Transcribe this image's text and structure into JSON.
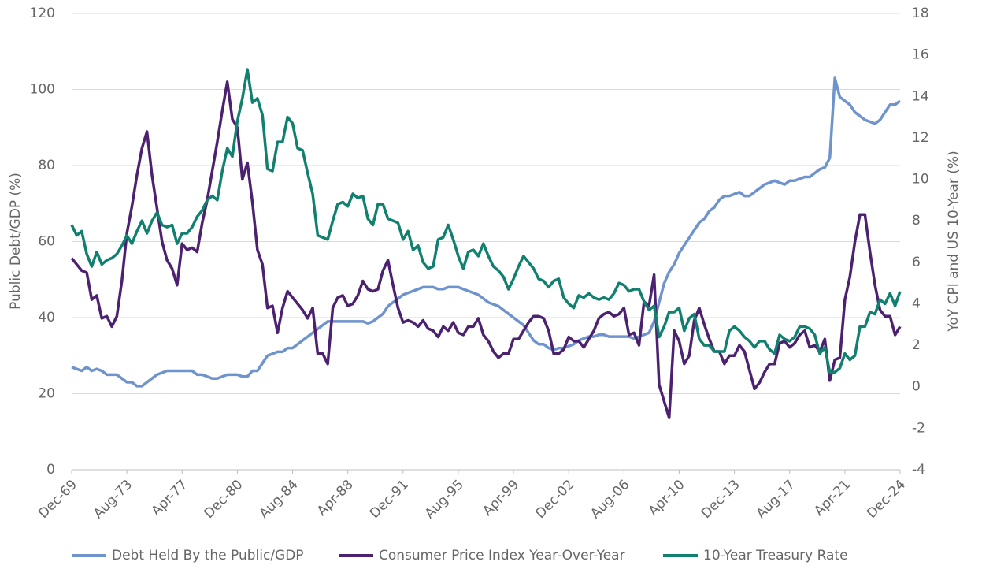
{
  "chart_data": {
    "type": "line",
    "y_label": "Public Debt/GDP (%)",
    "y2_label": "YoY CPI and US 10-Year (%)",
    "categories": [
      "Dec-69",
      null,
      null,
      null,
      null,
      null,
      null,
      null,
      null,
      null,
      null,
      "Aug-73",
      null,
      null,
      null,
      null,
      null,
      null,
      null,
      null,
      null,
      null,
      "Apr-77",
      null,
      null,
      null,
      null,
      null,
      null,
      null,
      null,
      null,
      null,
      "Dec-80",
      null,
      null,
      null,
      null,
      null,
      null,
      null,
      null,
      null,
      null,
      "Aug-84",
      null,
      null,
      null,
      null,
      null,
      null,
      null,
      null,
      null,
      null,
      "Apr-88",
      null,
      null,
      null,
      null,
      null,
      null,
      null,
      null,
      null,
      null,
      "Dec-91",
      null,
      null,
      null,
      null,
      null,
      null,
      null,
      null,
      null,
      null,
      "Aug-95",
      null,
      null,
      null,
      null,
      null,
      null,
      null,
      null,
      null,
      null,
      "Apr-99",
      null,
      null,
      null,
      null,
      null,
      null,
      null,
      null,
      null,
      null,
      "Dec-02",
      null,
      null,
      null,
      null,
      null,
      null,
      null,
      null,
      null,
      null,
      "Aug-06",
      null,
      null,
      null,
      null,
      null,
      null,
      null,
      null,
      null,
      null,
      "Apr-10",
      null,
      null,
      null,
      null,
      null,
      null,
      null,
      null,
      null,
      null,
      "Dec-13",
      null,
      null,
      null,
      null,
      null,
      null,
      null,
      null,
      null,
      null,
      "Aug-17",
      null,
      null,
      null,
      null,
      null,
      null,
      null,
      null,
      null,
      null,
      "Apr-21",
      null,
      null,
      null,
      null,
      null,
      null,
      null,
      null,
      null,
      null,
      "Dec-24"
    ],
    "ylim": [
      0,
      120
    ],
    "yticks": [
      0,
      20,
      40,
      60,
      80,
      100,
      120
    ],
    "y2lim": [
      -4,
      18
    ],
    "y2ticks": [
      -4,
      -2,
      0,
      2,
      4,
      6,
      8,
      10,
      12,
      14,
      16,
      18
    ],
    "grid": true,
    "legend": "bottom",
    "series": [
      {
        "name": "Debt Held By the Public/GDP",
        "color": "#6f93cd",
        "values": [
          27,
          26.5,
          26,
          27,
          26,
          26.5,
          26,
          25,
          25,
          25,
          24,
          23,
          23,
          22,
          22,
          23,
          24,
          25,
          25.5,
          26,
          26,
          26,
          26,
          26,
          26,
          25,
          25,
          24.5,
          24,
          24,
          24.5,
          25,
          25,
          25,
          24.5,
          24.5,
          26,
          26,
          28,
          30,
          30.5,
          31,
          31,
          32,
          32,
          33,
          34,
          35,
          36,
          37,
          38,
          39,
          39,
          39,
          39,
          39,
          39,
          39,
          39,
          38.5,
          39,
          40,
          41,
          43,
          44,
          45,
          46,
          46.5,
          47,
          47.5,
          48,
          48,
          48,
          47.5,
          47.5,
          48,
          48,
          48,
          47.5,
          47,
          46.5,
          46,
          45,
          44,
          43.5,
          43,
          42,
          41,
          40,
          39,
          38,
          36,
          34,
          33,
          33,
          32,
          31.5,
          32,
          32,
          32.5,
          33,
          34,
          34.5,
          35,
          35,
          35.5,
          35.5,
          35,
          35,
          35,
          35,
          35,
          34.5,
          35,
          35.5,
          36,
          39,
          44,
          49,
          52,
          54,
          57,
          59,
          61,
          63,
          65,
          66,
          68,
          69,
          71,
          72,
          72,
          72.5,
          73,
          72,
          72,
          73,
          74,
          75,
          75.5,
          76,
          75.5,
          75,
          76,
          76,
          76.5,
          77,
          77,
          78,
          79,
          79.5,
          82,
          103,
          98,
          97,
          96,
          94,
          93,
          92,
          91.5,
          91,
          92,
          94,
          96,
          96,
          97
        ]
      },
      {
        "name": "Consumer Price Index Year-Over-Year",
        "color": "#4b2170",
        "axis": "y2",
        "values": [
          6.2,
          5.9,
          5.6,
          5.5,
          4.2,
          4.4,
          3.3,
          3.4,
          2.9,
          3.4,
          5.1,
          7.4,
          8.7,
          10.2,
          11.5,
          12.3,
          10.2,
          8.6,
          7.0,
          6.1,
          5.7,
          4.9,
          6.9,
          6.6,
          6.7,
          6.5,
          7.9,
          9.0,
          10.4,
          11.8,
          13.3,
          14.7,
          12.9,
          12.5,
          10.0,
          10.8,
          8.9,
          6.6,
          5.9,
          3.8,
          3.9,
          2.6,
          3.8,
          4.6,
          4.3,
          4.0,
          3.7,
          3.3,
          3.8,
          1.6,
          1.6,
          1.1,
          3.8,
          4.3,
          4.4,
          3.9,
          4.0,
          4.4,
          5.1,
          4.7,
          4.6,
          4.7,
          5.6,
          6.1,
          4.9,
          3.8,
          3.1,
          3.2,
          3.1,
          2.9,
          3.2,
          2.8,
          2.7,
          2.4,
          2.9,
          2.7,
          3.1,
          2.6,
          2.5,
          2.9,
          2.9,
          3.3,
          2.5,
          2.2,
          1.7,
          1.4,
          1.6,
          1.6,
          2.3,
          2.3,
          2.7,
          3.1,
          3.4,
          3.4,
          3.3,
          2.7,
          1.6,
          1.6,
          1.8,
          2.4,
          2.2,
          2.2,
          1.9,
          2.3,
          2.7,
          3.3,
          3.5,
          3.6,
          3.4,
          3.5,
          3.8,
          2.5,
          2.6,
          2.0,
          4.1,
          3.9,
          5.4,
          0.1,
          -0.7,
          -1.5,
          2.7,
          2.2,
          1.1,
          1.5,
          3.2,
          3.8,
          3.0,
          2.3,
          1.7,
          1.7,
          1.1,
          1.5,
          1.5,
          2.0,
          1.7,
          0.8,
          -0.1,
          0.2,
          0.7,
          1.1,
          1.1,
          2.1,
          2.2,
          1.9,
          2.1,
          2.5,
          2.7,
          1.9,
          2.0,
          1.7,
          2.3,
          0.3,
          1.3,
          1.4,
          4.2,
          5.3,
          7.0,
          8.3,
          8.3,
          6.5,
          4.9,
          3.7,
          3.4,
          3.4,
          2.5,
          2.9
        ]
      },
      {
        "name": "10-Year Treasury Rate",
        "color": "#11806f",
        "axis": "y2",
        "values": [
          7.8,
          7.3,
          7.5,
          6.4,
          5.8,
          6.5,
          5.9,
          6.1,
          6.2,
          6.4,
          6.8,
          7.3,
          6.9,
          7.5,
          8.0,
          7.4,
          8.0,
          8.4,
          7.8,
          7.7,
          7.8,
          6.9,
          7.4,
          7.4,
          7.7,
          8.2,
          8.5,
          9.0,
          9.2,
          9.0,
          10.4,
          11.5,
          11.1,
          12.8,
          13.9,
          15.3,
          13.7,
          13.9,
          13.1,
          10.5,
          10.4,
          11.8,
          11.8,
          13.0,
          12.7,
          11.5,
          11.4,
          10.3,
          9.3,
          7.3,
          7.2,
          7.1,
          8.0,
          8.8,
          8.9,
          8.7,
          9.3,
          9.1,
          9.2,
          8.1,
          7.8,
          8.8,
          8.8,
          8.1,
          8.0,
          7.9,
          7.1,
          7.5,
          6.6,
          6.8,
          6.0,
          5.7,
          5.8,
          7.1,
          7.2,
          7.8,
          7.1,
          6.3,
          5.7,
          6.5,
          6.6,
          6.3,
          6.9,
          6.3,
          5.8,
          5.6,
          5.3,
          4.7,
          5.2,
          5.8,
          6.3,
          6.0,
          5.7,
          5.2,
          5.1,
          4.8,
          5.1,
          5.2,
          4.3,
          4.0,
          3.8,
          4.4,
          4.3,
          4.5,
          4.3,
          4.2,
          4.3,
          4.2,
          4.5,
          5.0,
          4.9,
          4.6,
          4.7,
          4.7,
          4.1,
          3.7,
          3.9,
          2.4,
          2.9,
          3.6,
          3.6,
          3.8,
          2.7,
          3.3,
          3.5,
          2.3,
          2.0,
          2.0,
          1.7,
          1.7,
          1.7,
          2.7,
          2.9,
          2.7,
          2.4,
          2.2,
          1.9,
          2.2,
          2.2,
          1.8,
          1.6,
          2.5,
          2.3,
          2.2,
          2.4,
          2.9,
          2.9,
          2.8,
          2.5,
          1.6,
          1.9,
          0.7,
          0.7,
          0.9,
          1.6,
          1.3,
          1.5,
          2.9,
          2.9,
          3.6,
          3.5,
          4.2,
          4.0,
          4.5,
          3.9,
          4.6
        ]
      }
    ]
  }
}
